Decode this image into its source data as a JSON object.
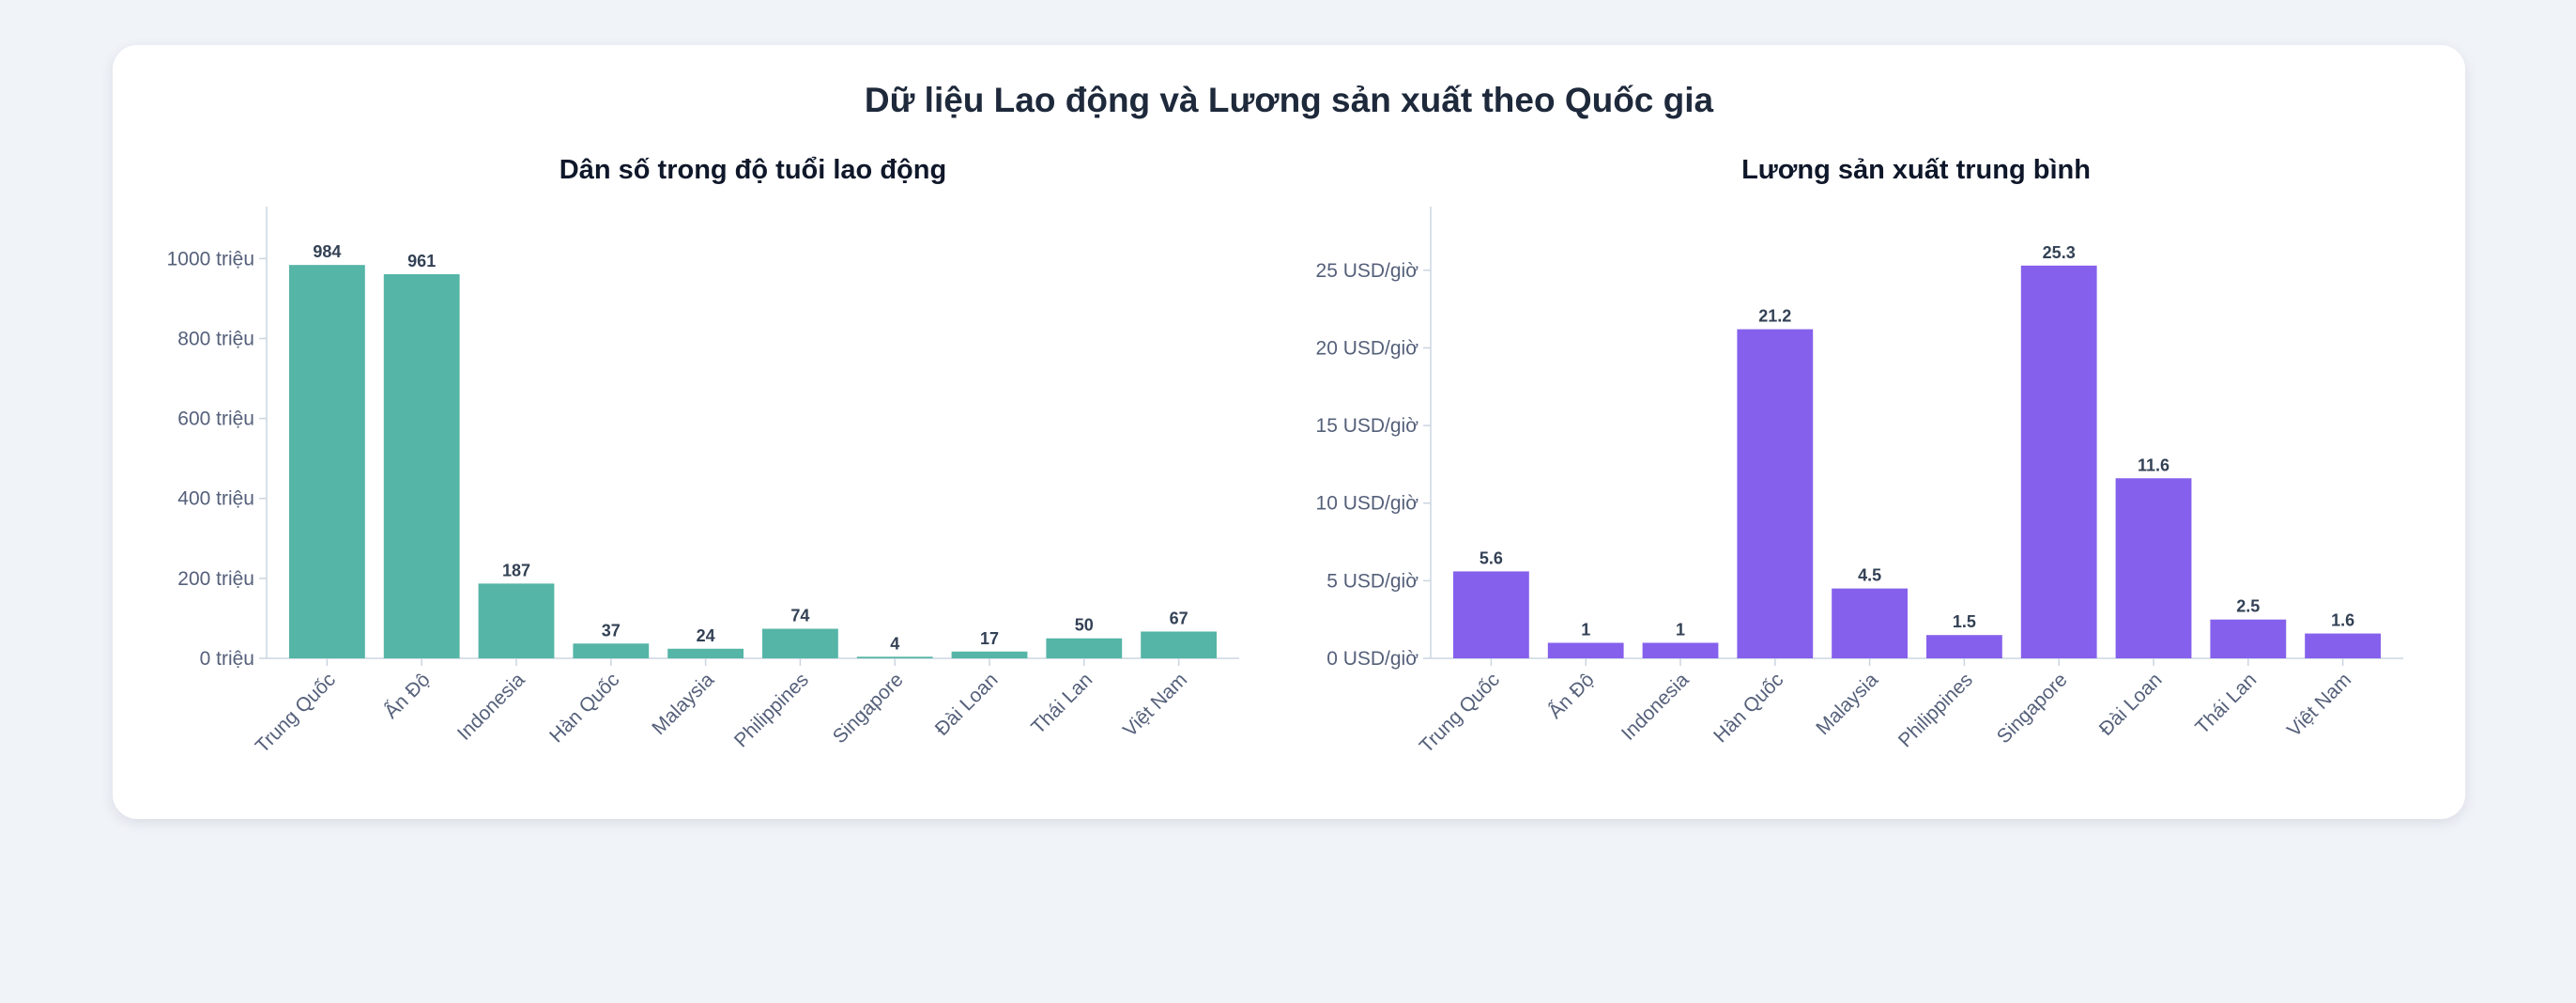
{
  "title": "Dữ liệu Lao động và Lương sản xuất theo Quốc gia",
  "chart_data": [
    {
      "type": "bar",
      "title": "Dân số trong độ tuổi lao động",
      "categories": [
        "Trung Quốc",
        "Ấn Độ",
        "Indonesia",
        "Hàn Quốc",
        "Malaysia",
        "Philippines",
        "Singapore",
        "Đài Loan",
        "Thái Lan",
        "Việt Nam"
      ],
      "values": [
        984,
        961,
        187,
        37,
        24,
        74,
        4,
        17,
        50,
        67
      ],
      "value_labels": [
        "984",
        "961",
        "187",
        "37",
        "24",
        "74",
        "4",
        "17",
        "50",
        "67"
      ],
      "yticks": [
        0,
        200,
        400,
        600,
        800,
        1000
      ],
      "ytick_labels": [
        "0 triệu",
        "200 triệu",
        "400 triệu",
        "600 triệu",
        "800 triệu",
        "1000 triệu"
      ],
      "ylim": [
        0,
        1130
      ],
      "color": "#55b5a6",
      "grid": false
    },
    {
      "type": "bar",
      "title": "Lương sản xuất trung bình",
      "categories": [
        "Trung Quốc",
        "Ấn Độ",
        "Indonesia",
        "Hàn Quốc",
        "Malaysia",
        "Philippines",
        "Singapore",
        "Đài Loan",
        "Thái Lan",
        "Việt Nam"
      ],
      "values": [
        5.6,
        1,
        1,
        21.2,
        4.5,
        1.5,
        25.3,
        11.6,
        2.5,
        1.6
      ],
      "value_labels": [
        "5.6",
        "1",
        "1",
        "21.2",
        "4.5",
        "1.5",
        "25.3",
        "11.6",
        "2.5",
        "1.6"
      ],
      "yticks": [
        0,
        5,
        10,
        15,
        20,
        25
      ],
      "ytick_labels": [
        "0 USD/giờ",
        "5 USD/giờ",
        "10 USD/giờ",
        "15 USD/giờ",
        "20 USD/giờ",
        "25 USD/giờ"
      ],
      "ylim": [
        0,
        29.1
      ],
      "color": "#8560ec",
      "grid": false
    }
  ]
}
